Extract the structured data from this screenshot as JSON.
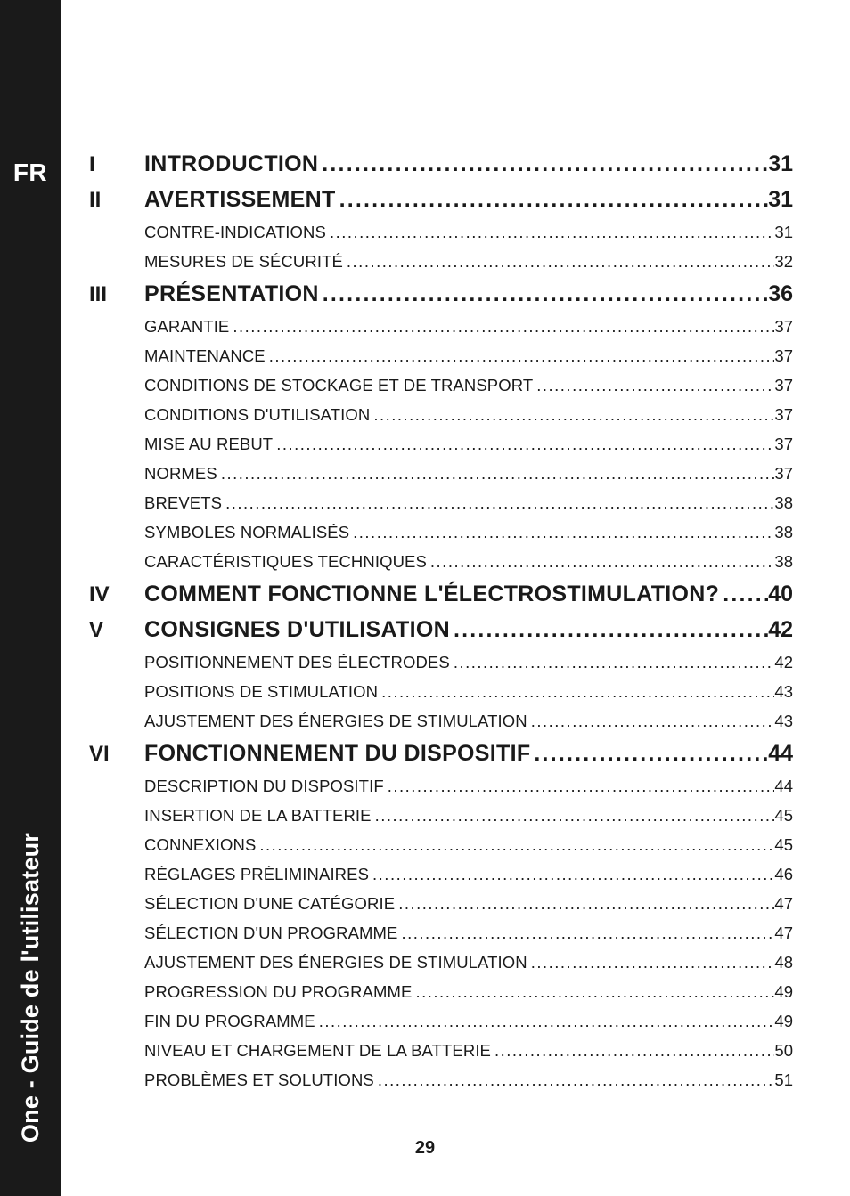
{
  "sidebar": {
    "lang": "FR",
    "title": "One - Guide de l'utilisateur"
  },
  "footer": {
    "page": "29"
  },
  "leaders": {
    "main": "...............................................................................................",
    "sub": "..............................................................................................................................."
  },
  "toc": [
    {
      "roman": "I",
      "level": "main",
      "title": "INTRODUCTION",
      "page": "31"
    },
    {
      "roman": "II",
      "level": "main",
      "title": "AVERTISSEMENT",
      "page": "31"
    },
    {
      "roman": "",
      "level": "sub",
      "title": "CONTRE-INDICATIONS",
      "page": "31"
    },
    {
      "roman": "",
      "level": "sub",
      "title": "MESURES DE SÉCURITÉ",
      "page": "32"
    },
    {
      "roman": "III",
      "level": "main",
      "title": "PRÉSENTATION",
      "page": "36"
    },
    {
      "roman": "",
      "level": "sub",
      "title": "GARANTIE",
      "page": "37"
    },
    {
      "roman": "",
      "level": "sub",
      "title": "MAINTENANCE",
      "page": "37"
    },
    {
      "roman": "",
      "level": "sub",
      "title": "CONDITIONS DE STOCKAGE ET DE TRANSPORT",
      "page": "37"
    },
    {
      "roman": "",
      "level": "sub",
      "title": "CONDITIONS D'UTILISATION",
      "page": "37"
    },
    {
      "roman": "",
      "level": "sub",
      "title": "MISE AU REBUT",
      "page": "37"
    },
    {
      "roman": "",
      "level": "sub",
      "title": "NORMES",
      "page": "37"
    },
    {
      "roman": "",
      "level": "sub",
      "title": "BREVETS",
      "page": "38"
    },
    {
      "roman": "",
      "level": "sub",
      "title": "SYMBOLES NORMALISÉS",
      "page": "38"
    },
    {
      "roman": "",
      "level": "sub",
      "title": "CARACTÉRISTIQUES TECHNIQUES",
      "page": "38"
    },
    {
      "roman": "IV",
      "level": "main",
      "title": "COMMENT FONCTIONNE L'ÉLECTROSTIMULATION?",
      "page": "40"
    },
    {
      "roman": "V",
      "level": "main",
      "title": "CONSIGNES D'UTILISATION",
      "page": "42"
    },
    {
      "roman": "",
      "level": "sub",
      "title": "POSITIONNEMENT DES ÉLECTRODES",
      "page": "42"
    },
    {
      "roman": "",
      "level": "sub",
      "title": "POSITIONS DE STIMULATION",
      "page": "43"
    },
    {
      "roman": "",
      "level": "sub",
      "title": "AJUSTEMENT DES ÉNERGIES DE STIMULATION",
      "page": "43"
    },
    {
      "roman": "VI",
      "level": "main",
      "title": "FONCTIONNEMENT DU DISPOSITIF",
      "page": "44"
    },
    {
      "roman": "",
      "level": "sub",
      "title": "DESCRIPTION DU DISPOSITIF",
      "page": "44"
    },
    {
      "roman": "",
      "level": "sub",
      "title": "INSERTION DE LA BATTERIE",
      "page": "45"
    },
    {
      "roman": "",
      "level": "sub",
      "title": "CONNEXIONS",
      "page": "45"
    },
    {
      "roman": "",
      "level": "sub",
      "title": "RÉGLAGES PRÉLIMINAIRES",
      "page": "46"
    },
    {
      "roman": "",
      "level": "sub",
      "title": "SÉLECTION D'UNE CATÉGORIE",
      "page": "47"
    },
    {
      "roman": "",
      "level": "sub",
      "title": "SÉLECTION D'UN PROGRAMME",
      "page": "47"
    },
    {
      "roman": "",
      "level": "sub",
      "title": "AJUSTEMENT DES ÉNERGIES DE STIMULATION",
      "page": "48"
    },
    {
      "roman": "",
      "level": "sub",
      "title": "PROGRESSION DU PROGRAMME",
      "page": "49"
    },
    {
      "roman": "",
      "level": "sub",
      "title": "FIN DU PROGRAMME",
      "page": "49"
    },
    {
      "roman": "",
      "level": "sub",
      "title": "NIVEAU ET CHARGEMENT DE LA BATTERIE",
      "page": "50"
    },
    {
      "roman": "",
      "level": "sub",
      "title": "PROBLÈMES ET SOLUTIONS",
      "page": "51"
    }
  ]
}
